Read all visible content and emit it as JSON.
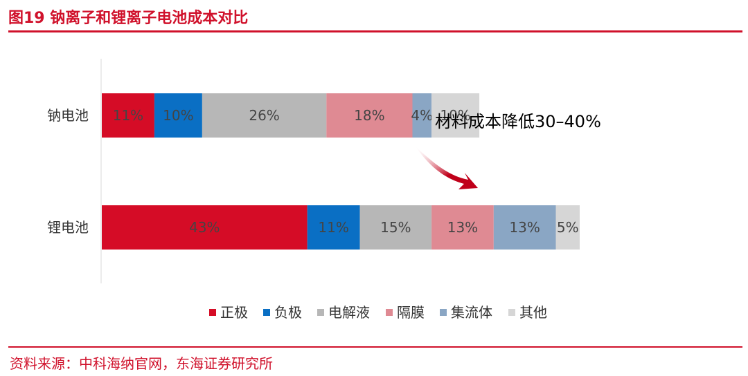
{
  "header": {
    "title": "图19  钠离子和锂离子电池成本对比"
  },
  "footer": {
    "source": "资料来源：中科海纳官网，东海证券研究所"
  },
  "chart_data": {
    "type": "bar",
    "orientation": "horizontal",
    "stacked": true,
    "categories": [
      "钠电池",
      "锂电池"
    ],
    "series": [
      {
        "name": "正极",
        "values": [
          11,
          43
        ],
        "labels": [
          "11%",
          "43%"
        ],
        "color": "#d50c26"
      },
      {
        "name": "负极",
        "values": [
          10,
          11
        ],
        "labels": [
          "10%",
          "11%"
        ],
        "color": "#0a6fc4"
      },
      {
        "name": "电解液",
        "values": [
          26,
          15
        ],
        "labels": [
          "26%",
          "15%"
        ],
        "color": "#b7b7b7"
      },
      {
        "name": "隔膜",
        "values": [
          18,
          13
        ],
        "labels": [
          "18%",
          "13%"
        ],
        "color": "#df8a93"
      },
      {
        "name": "集流体",
        "values": [
          4,
          13
        ],
        "labels": [
          "4%",
          "13%"
        ],
        "color": "#8aa6c4"
      },
      {
        "name": "其他",
        "values": [
          10,
          5
        ],
        "labels": [
          "10%",
          "5%"
        ],
        "color": "#d6d6d6"
      }
    ],
    "annotation": "材料成本降低30–40%",
    "legend_position": "bottom",
    "grid": false
  }
}
